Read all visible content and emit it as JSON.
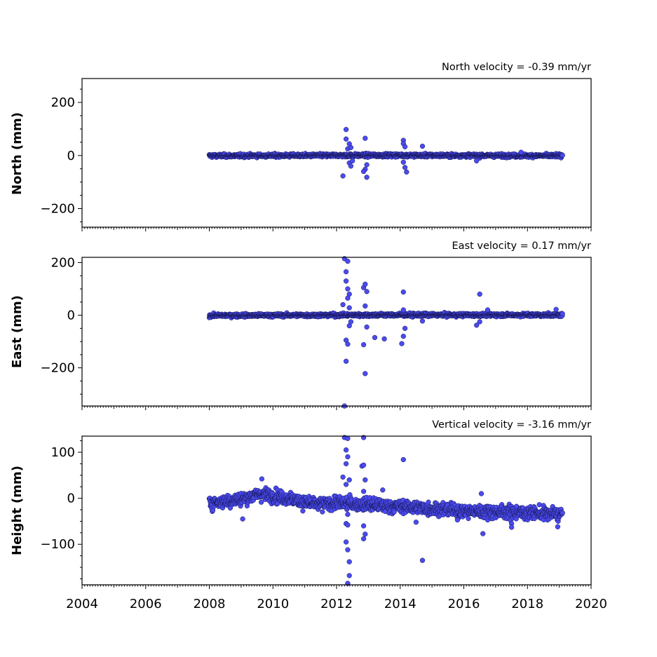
{
  "chart_data": [
    {
      "type": "scatter",
      "title": "North velocity = -0.39 mm/yr",
      "ylabel": "North (mm)",
      "xlim": [
        2004,
        2020
      ],
      "ylim": [
        -270,
        290
      ],
      "yticks": [
        -200,
        0,
        200
      ],
      "ytick_labels": [
        "−200",
        "0",
        "200"
      ],
      "x_range": [
        2008.0,
        2019.1
      ],
      "baseline": [
        {
          "x": 2008.0,
          "y": -1
        },
        {
          "x": 2013.5,
          "y": 1
        },
        {
          "x": 2019.1,
          "y": -1
        }
      ],
      "noise": 3,
      "outliers": [
        {
          "x": 2012.2,
          "y": -77
        },
        {
          "x": 2012.3,
          "y": 98
        },
        {
          "x": 2012.3,
          "y": 62
        },
        {
          "x": 2012.35,
          "y": 25
        },
        {
          "x": 2012.4,
          "y": 44
        },
        {
          "x": 2012.4,
          "y": -28
        },
        {
          "x": 2012.45,
          "y": -40
        },
        {
          "x": 2012.45,
          "y": 30
        },
        {
          "x": 2012.5,
          "y": -20
        },
        {
          "x": 2012.9,
          "y": 65
        },
        {
          "x": 2012.9,
          "y": -52
        },
        {
          "x": 2012.95,
          "y": -82
        },
        {
          "x": 2012.95,
          "y": -35
        },
        {
          "x": 2012.85,
          "y": -60
        },
        {
          "x": 2014.1,
          "y": 57
        },
        {
          "x": 2014.1,
          "y": 45
        },
        {
          "x": 2014.15,
          "y": -45
        },
        {
          "x": 2014.2,
          "y": -62
        },
        {
          "x": 2014.15,
          "y": 33
        },
        {
          "x": 2014.1,
          "y": -25
        },
        {
          "x": 2014.7,
          "y": 35
        },
        {
          "x": 2016.4,
          "y": -20
        },
        {
          "x": 2017.8,
          "y": 12
        }
      ]
    },
    {
      "type": "scatter",
      "title": "East velocity = 0.17 mm/yr",
      "ylabel": "East (mm)",
      "xlim": [
        2004,
        2020
      ],
      "ylim": [
        -345,
        220
      ],
      "yticks": [
        -200,
        0,
        200
      ],
      "ytick_labels": [
        "−200",
        "0",
        "200"
      ],
      "x_range": [
        2008.0,
        2019.1
      ],
      "baseline": [
        {
          "x": 2008.0,
          "y": -1
        },
        {
          "x": 2013.5,
          "y": 1
        },
        {
          "x": 2019.1,
          "y": 1
        }
      ],
      "noise": 3,
      "outliers": [
        {
          "x": 2012.25,
          "y": 215
        },
        {
          "x": 2012.35,
          "y": 205
        },
        {
          "x": 2012.3,
          "y": 165
        },
        {
          "x": 2012.3,
          "y": 130
        },
        {
          "x": 2012.35,
          "y": 100
        },
        {
          "x": 2012.4,
          "y": 80
        },
        {
          "x": 2012.35,
          "y": 65
        },
        {
          "x": 2012.4,
          "y": 28
        },
        {
          "x": 2012.2,
          "y": 40
        },
        {
          "x": 2012.3,
          "y": -95
        },
        {
          "x": 2012.35,
          "y": -110
        },
        {
          "x": 2012.3,
          "y": -175
        },
        {
          "x": 2012.25,
          "y": -345
        },
        {
          "x": 2012.4,
          "y": -40
        },
        {
          "x": 2012.45,
          "y": -25
        },
        {
          "x": 2012.85,
          "y": 105
        },
        {
          "x": 2012.9,
          "y": 118
        },
        {
          "x": 2012.95,
          "y": 90
        },
        {
          "x": 2012.9,
          "y": 35
        },
        {
          "x": 2012.85,
          "y": -112
        },
        {
          "x": 2012.9,
          "y": -222
        },
        {
          "x": 2012.95,
          "y": -45
        },
        {
          "x": 2013.2,
          "y": -85
        },
        {
          "x": 2013.5,
          "y": -90
        },
        {
          "x": 2014.1,
          "y": 88
        },
        {
          "x": 2014.1,
          "y": 20
        },
        {
          "x": 2014.1,
          "y": -80
        },
        {
          "x": 2014.05,
          "y": -108
        },
        {
          "x": 2014.15,
          "y": -50
        },
        {
          "x": 2014.7,
          "y": -22
        },
        {
          "x": 2016.4,
          "y": -38
        },
        {
          "x": 2016.5,
          "y": 80
        },
        {
          "x": 2016.5,
          "y": -25
        },
        {
          "x": 2016.75,
          "y": 20
        },
        {
          "x": 2018.9,
          "y": 22
        }
      ]
    },
    {
      "type": "scatter",
      "title": "Vertical velocity = -3.16 mm/yr",
      "ylabel": "Height (mm)",
      "xlim": [
        2004,
        2020
      ],
      "ylim": [
        -188,
        135
      ],
      "yticks": [
        -100,
        0,
        100
      ],
      "ytick_labels": [
        "−100",
        "0",
        "100"
      ],
      "x_range": [
        2008.0,
        2019.1
      ],
      "baseline": [
        {
          "x": 2008.0,
          "y": -10
        },
        {
          "x": 2009.0,
          "y": -2
        },
        {
          "x": 2009.6,
          "y": 10
        },
        {
          "x": 2010.5,
          "y": 0
        },
        {
          "x": 2011.3,
          "y": -14
        },
        {
          "x": 2012.0,
          "y": -10
        },
        {
          "x": 2013.0,
          "y": -14
        },
        {
          "x": 2014.5,
          "y": -20
        },
        {
          "x": 2016.0,
          "y": -28
        },
        {
          "x": 2017.5,
          "y": -30
        },
        {
          "x": 2019.1,
          "y": -35
        }
      ],
      "noise": 7,
      "outliers": [
        {
          "x": 2012.25,
          "y": 132
        },
        {
          "x": 2012.35,
          "y": 130
        },
        {
          "x": 2012.3,
          "y": 105
        },
        {
          "x": 2012.35,
          "y": 90
        },
        {
          "x": 2012.3,
          "y": 75
        },
        {
          "x": 2012.2,
          "y": 46
        },
        {
          "x": 2012.4,
          "y": 40
        },
        {
          "x": 2012.3,
          "y": 30
        },
        {
          "x": 2012.35,
          "y": -35
        },
        {
          "x": 2012.3,
          "y": -55
        },
        {
          "x": 2012.35,
          "y": -58
        },
        {
          "x": 2012.3,
          "y": -95
        },
        {
          "x": 2012.35,
          "y": -112
        },
        {
          "x": 2012.4,
          "y": -138
        },
        {
          "x": 2012.4,
          "y": -168
        },
        {
          "x": 2012.35,
          "y": -185
        },
        {
          "x": 2012.85,
          "y": 132
        },
        {
          "x": 2012.8,
          "y": 70
        },
        {
          "x": 2012.85,
          "y": 72
        },
        {
          "x": 2012.9,
          "y": 40
        },
        {
          "x": 2012.85,
          "y": 15
        },
        {
          "x": 2012.85,
          "y": -60
        },
        {
          "x": 2012.9,
          "y": -78
        },
        {
          "x": 2012.85,
          "y": -88
        },
        {
          "x": 2009.05,
          "y": -45
        },
        {
          "x": 2009.65,
          "y": 42
        },
        {
          "x": 2013.45,
          "y": 18
        },
        {
          "x": 2014.1,
          "y": 84
        },
        {
          "x": 2014.5,
          "y": -52
        },
        {
          "x": 2014.7,
          "y": -135
        },
        {
          "x": 2015.8,
          "y": -47
        },
        {
          "x": 2016.55,
          "y": 10
        },
        {
          "x": 2016.6,
          "y": -77
        },
        {
          "x": 2017.5,
          "y": -55
        },
        {
          "x": 2017.5,
          "y": -63
        },
        {
          "x": 2018.95,
          "y": -62
        }
      ]
    }
  ],
  "x_axis": {
    "ticks": [
      2004,
      2006,
      2008,
      2010,
      2012,
      2014,
      2016,
      2018,
      2020
    ],
    "tick_labels": [
      "2004",
      "2006",
      "2008",
      "2010",
      "2012",
      "2014",
      "2016",
      "2018",
      "2020"
    ]
  },
  "colors": {
    "marker_fill": "#4b4bf0",
    "marker_edge": "#141450"
  }
}
